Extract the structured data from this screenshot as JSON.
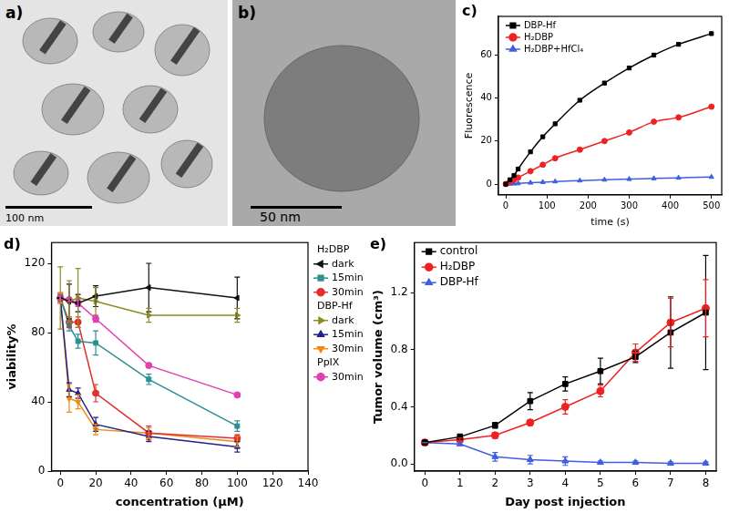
{
  "images": [
    {
      "title": "a)",
      "scale_bar": "100 nm"
    },
    {
      "title": "b)",
      "scale_bar": "50 nm"
    }
  ],
  "chart_data": [
    {
      "type": "line",
      "title": "c)",
      "x_label": "time (s)",
      "y_label": "Fluorescence",
      "x": [
        0,
        10,
        20,
        30,
        60,
        90,
        120,
        180,
        240,
        300,
        360,
        420,
        500
      ],
      "xlim": [
        -18,
        525
      ],
      "xticks": [
        0,
        100,
        200,
        300,
        400,
        500
      ],
      "ylim": [
        -5,
        78
      ],
      "yticks": [
        0,
        20,
        40,
        60
      ],
      "grid": false,
      "legend": "top left",
      "series": [
        {
          "name": "DBP-Hf",
          "color": "#000000",
          "marker": "square",
          "line_style": "solid",
          "values": [
            0,
            2,
            4,
            7,
            15,
            22,
            28,
            39,
            47,
            54,
            60,
            65,
            70
          ]
        },
        {
          "name": "H₂DBP",
          "color": "#ee2222",
          "marker": "circle",
          "line_style": "solid",
          "values": [
            0,
            1,
            2,
            3,
            6,
            9,
            12,
            16,
            20,
            24,
            29,
            31,
            36
          ]
        },
        {
          "name": "H₂DBP+HfCl₄",
          "color": "#3f5fe0",
          "marker": "triangle",
          "line_style": "solid",
          "values": [
            0,
            0.1,
            0.2,
            0.3,
            0.6,
            0.9,
            1.2,
            1.6,
            2,
            2.3,
            2.6,
            2.9,
            3.3
          ]
        }
      ]
    },
    {
      "type": "line",
      "title": "d)",
      "x_label": "concentration (μM)",
      "y_label": "viability%",
      "x": [
        0,
        5,
        10,
        20,
        50,
        100
      ],
      "xlim": [
        -5,
        140
      ],
      "xticks": [
        0,
        20,
        40,
        60,
        80,
        100,
        120,
        140
      ],
      "ylim": [
        0,
        132
      ],
      "yticks": [
        0,
        40,
        80,
        120
      ],
      "grid": false,
      "legend": "right",
      "series": [
        {
          "group": "H₂DBP",
          "name": "dark",
          "color": "#111111",
          "marker": "triangle-left",
          "line_style": "solid",
          "values": [
            100,
            98,
            97,
            101,
            106,
            100
          ],
          "errors": [
            0,
            10,
            5,
            6,
            14,
            12
          ]
        },
        {
          "group": "H₂DBP",
          "name": "15min",
          "color": "#2a9090",
          "marker": "square",
          "line_style": "solid",
          "values": [
            100,
            84,
            75,
            74,
            53,
            26
          ],
          "errors": [
            2,
            3,
            4,
            7,
            3,
            3
          ]
        },
        {
          "group": "H₂DBP",
          "name": "30min",
          "color": "#e03030",
          "marker": "circle",
          "line_style": "solid",
          "values": [
            100,
            86,
            86,
            45,
            22,
            19
          ],
          "errors": [
            2,
            3,
            3,
            5,
            4,
            2
          ]
        },
        {
          "group": "DBP-Hf",
          "name": "dark",
          "color": "#8c8c22",
          "marker": "triangle-right",
          "line_style": "solid",
          "values": [
            100,
            98,
            100,
            98,
            90,
            90
          ],
          "errors": [
            18,
            12,
            17,
            8,
            4,
            4
          ]
        },
        {
          "group": "DBP-Hf",
          "name": "15min",
          "color": "#22228a",
          "marker": "triangle",
          "line_style": "solid",
          "values": [
            100,
            47,
            45,
            27,
            20,
            14
          ],
          "errors": [
            3,
            4,
            3,
            4,
            3,
            3
          ]
        },
        {
          "group": "DBP-Hf",
          "name": "30min",
          "color": "#f08a10",
          "marker": "triangle-down",
          "line_style": "solid",
          "values": [
            100,
            42,
            40,
            24,
            22,
            17
          ],
          "errors": [
            3,
            8,
            4,
            3,
            3,
            3
          ]
        },
        {
          "group": "PpIX",
          "name": "30min",
          "color": "#e040b0",
          "marker": "circle",
          "line_style": "solid",
          "values": [
            100,
            99,
            97,
            88,
            61,
            44
          ],
          "errors": [
            1,
            1,
            2,
            2,
            1,
            1
          ]
        }
      ]
    },
    {
      "type": "line",
      "title": "e)",
      "x_label": "Day post injection",
      "y_label": "Tumor volume (cm³)",
      "x": [
        0,
        1,
        2,
        3,
        4,
        5,
        6,
        7,
        8
      ],
      "xlim": [
        -0.3,
        8.3
      ],
      "xticks": [
        0,
        1,
        2,
        3,
        4,
        5,
        6,
        7,
        8
      ],
      "ylim": [
        -0.05,
        1.55
      ],
      "yticks": [
        {
          "value": 0,
          "label": "0.0"
        },
        0.4,
        0.8,
        1.2
      ],
      "grid": false,
      "legend": "top left",
      "series": [
        {
          "name": "control",
          "color": "#000000",
          "marker": "square",
          "line_style": "solid",
          "values": [
            0.15,
            0.19,
            0.27,
            0.44,
            0.56,
            0.65,
            0.75,
            0.92,
            1.06
          ],
          "errors": [
            0,
            0.02,
            0.02,
            0.06,
            0.05,
            0.09,
            0.04,
            0.25,
            0.4
          ]
        },
        {
          "name": "H₂DBP",
          "color": "#ee2222",
          "marker": "circle",
          "line_style": "solid",
          "values": [
            0.15,
            0.17,
            0.2,
            0.29,
            0.4,
            0.51,
            0.78,
            0.99,
            1.09
          ],
          "errors": [
            0,
            0.01,
            0.02,
            0.02,
            0.05,
            0.04,
            0.06,
            0.17,
            0.2
          ]
        },
        {
          "name": "DBP-Hf",
          "color": "#3f5fe0",
          "marker": "triangle",
          "line_style": "solid",
          "values": [
            0.15,
            0.14,
            0.05,
            0.03,
            0.02,
            0.01,
            0.01,
            0.005,
            0.005
          ],
          "errors": [
            0,
            0.01,
            0.03,
            0.03,
            0.03,
            0.01,
            0.01,
            0.01,
            0.01
          ]
        }
      ]
    }
  ]
}
